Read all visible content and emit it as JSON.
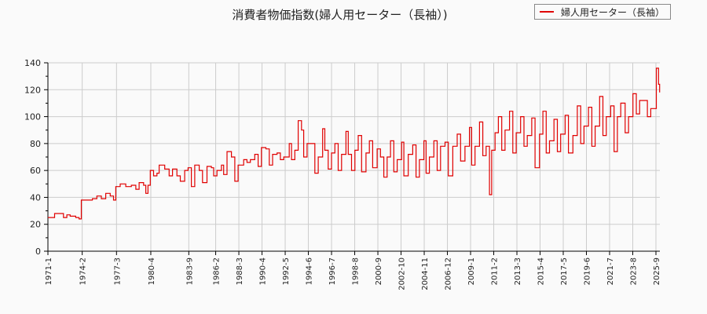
{
  "title": "消費者物価指数(婦人用セーター（長袖）)",
  "legend": {
    "label": "婦人用セーター（長袖）",
    "color": "#e00000"
  },
  "chart_data": {
    "type": "line",
    "title": "消費者物価指数(婦人用セーター（長袖）)",
    "xlabel": "",
    "ylabel": "",
    "ylim": [
      0,
      140
    ],
    "yticks": [
      0,
      20,
      40,
      60,
      80,
      100,
      120,
      140
    ],
    "grid": true,
    "legend_position": "top-right",
    "xticks": [
      "1971-1",
      "1974-2",
      "1977-3",
      "1980-4",
      "1983-9",
      "1986-2",
      "1988-3",
      "1990-4",
      "1992-5",
      "1994-6",
      "1996-7",
      "1998-8",
      "2000-9",
      "2002-10",
      "2004-11",
      "2006-12",
      "2009-1",
      "2011-2",
      "2013-3",
      "2015-4",
      "2017-5",
      "2019-6",
      "2021-7",
      "2023-8",
      "2025-9"
    ],
    "series": [
      {
        "name": "婦人用セーター（長袖）",
        "color": "#e00000",
        "points": [
          [
            1971.0,
            25
          ],
          [
            1971.3,
            25
          ],
          [
            1971.6,
            28
          ],
          [
            1972.0,
            28
          ],
          [
            1972.4,
            25
          ],
          [
            1972.7,
            27
          ],
          [
            1973.0,
            26
          ],
          [
            1973.5,
            25
          ],
          [
            1973.8,
            24
          ],
          [
            1974.0,
            38
          ],
          [
            1974.5,
            38
          ],
          [
            1975.0,
            39
          ],
          [
            1975.4,
            41
          ],
          [
            1975.8,
            39
          ],
          [
            1976.2,
            43
          ],
          [
            1976.6,
            41
          ],
          [
            1976.9,
            38
          ],
          [
            1977.1,
            48
          ],
          [
            1977.5,
            50
          ],
          [
            1978.0,
            48
          ],
          [
            1978.5,
            49
          ],
          [
            1978.9,
            46
          ],
          [
            1979.2,
            51
          ],
          [
            1979.6,
            49
          ],
          [
            1979.8,
            43
          ],
          [
            1980.0,
            49
          ],
          [
            1980.2,
            60
          ],
          [
            1980.5,
            56
          ],
          [
            1980.8,
            58
          ],
          [
            1981.0,
            64
          ],
          [
            1981.5,
            61
          ],
          [
            1981.9,
            56
          ],
          [
            1982.2,
            61
          ],
          [
            1982.6,
            56
          ],
          [
            1982.9,
            52
          ],
          [
            1983.3,
            60
          ],
          [
            1983.6,
            62
          ],
          [
            1983.9,
            48
          ],
          [
            1984.2,
            64
          ],
          [
            1984.6,
            60
          ],
          [
            1984.9,
            51
          ],
          [
            1985.3,
            63
          ],
          [
            1985.7,
            62
          ],
          [
            1985.9,
            56
          ],
          [
            1986.2,
            60
          ],
          [
            1986.6,
            64
          ],
          [
            1986.8,
            57
          ],
          [
            1987.1,
            74
          ],
          [
            1987.5,
            70
          ],
          [
            1987.8,
            52
          ],
          [
            1988.1,
            64
          ],
          [
            1988.6,
            68
          ],
          [
            1988.9,
            66
          ],
          [
            1989.2,
            68
          ],
          [
            1989.6,
            72
          ],
          [
            1989.9,
            63
          ],
          [
            1990.2,
            77
          ],
          [
            1990.6,
            76
          ],
          [
            1990.9,
            64
          ],
          [
            1991.2,
            72
          ],
          [
            1991.6,
            73
          ],
          [
            1991.9,
            68
          ],
          [
            1992.2,
            70
          ],
          [
            1992.7,
            80
          ],
          [
            1992.9,
            68
          ],
          [
            1993.2,
            75
          ],
          [
            1993.5,
            97
          ],
          [
            1993.8,
            90
          ],
          [
            1994.0,
            70
          ],
          [
            1994.3,
            80
          ],
          [
            1994.7,
            80
          ],
          [
            1995.0,
            58
          ],
          [
            1995.3,
            70
          ],
          [
            1995.7,
            91
          ],
          [
            1995.9,
            75
          ],
          [
            1996.2,
            61
          ],
          [
            1996.5,
            73
          ],
          [
            1996.8,
            80
          ],
          [
            1997.1,
            60
          ],
          [
            1997.4,
            72
          ],
          [
            1997.8,
            89
          ],
          [
            1998.0,
            72
          ],
          [
            1998.3,
            60
          ],
          [
            1998.6,
            75
          ],
          [
            1998.9,
            86
          ],
          [
            1999.2,
            59
          ],
          [
            1999.6,
            73
          ],
          [
            1999.9,
            82
          ],
          [
            2000.2,
            62
          ],
          [
            2000.6,
            76
          ],
          [
            2000.9,
            70
          ],
          [
            2001.2,
            55
          ],
          [
            2001.5,
            70
          ],
          [
            2001.8,
            82
          ],
          [
            2002.1,
            59
          ],
          [
            2002.4,
            68
          ],
          [
            2002.8,
            81
          ],
          [
            2003.0,
            56
          ],
          [
            2003.4,
            72
          ],
          [
            2003.8,
            79
          ],
          [
            2004.1,
            55
          ],
          [
            2004.4,
            68
          ],
          [
            2004.8,
            82
          ],
          [
            2005.0,
            58
          ],
          [
            2005.3,
            70
          ],
          [
            2005.7,
            82
          ],
          [
            2006.0,
            60
          ],
          [
            2006.3,
            78
          ],
          [
            2006.7,
            81
          ],
          [
            2007.0,
            56
          ],
          [
            2007.4,
            78
          ],
          [
            2007.8,
            87
          ],
          [
            2008.1,
            67
          ],
          [
            2008.5,
            78
          ],
          [
            2008.9,
            92
          ],
          [
            2009.1,
            64
          ],
          [
            2009.4,
            78
          ],
          [
            2009.8,
            96
          ],
          [
            2010.1,
            71
          ],
          [
            2010.4,
            78
          ],
          [
            2010.7,
            42
          ],
          [
            2010.9,
            75
          ],
          [
            2011.2,
            88
          ],
          [
            2011.5,
            100
          ],
          [
            2011.8,
            75
          ],
          [
            2012.1,
            90
          ],
          [
            2012.5,
            104
          ],
          [
            2012.8,
            73
          ],
          [
            2013.1,
            88
          ],
          [
            2013.5,
            100
          ],
          [
            2013.8,
            78
          ],
          [
            2014.1,
            86
          ],
          [
            2014.5,
            99
          ],
          [
            2014.8,
            62
          ],
          [
            2015.2,
            87
          ],
          [
            2015.5,
            104
          ],
          [
            2015.8,
            73
          ],
          [
            2016.1,
            82
          ],
          [
            2016.5,
            98
          ],
          [
            2016.8,
            74
          ],
          [
            2017.1,
            87
          ],
          [
            2017.5,
            101
          ],
          [
            2017.8,
            73
          ],
          [
            2018.2,
            86
          ],
          [
            2018.6,
            108
          ],
          [
            2018.9,
            80
          ],
          [
            2019.2,
            93
          ],
          [
            2019.6,
            107
          ],
          [
            2019.9,
            78
          ],
          [
            2020.2,
            93
          ],
          [
            2020.6,
            115
          ],
          [
            2020.9,
            86
          ],
          [
            2021.2,
            100
          ],
          [
            2021.6,
            108
          ],
          [
            2021.9,
            74
          ],
          [
            2022.2,
            100
          ],
          [
            2022.5,
            110
          ],
          [
            2022.9,
            88
          ],
          [
            2023.2,
            100
          ],
          [
            2023.6,
            117
          ],
          [
            2023.9,
            102
          ],
          [
            2024.2,
            112
          ],
          [
            2024.6,
            112
          ],
          [
            2024.9,
            100
          ],
          [
            2025.2,
            106
          ],
          [
            2025.5,
            106
          ],
          [
            2025.7,
            136
          ],
          [
            2025.9,
            124
          ],
          [
            2026.0,
            118
          ]
        ]
      }
    ]
  }
}
